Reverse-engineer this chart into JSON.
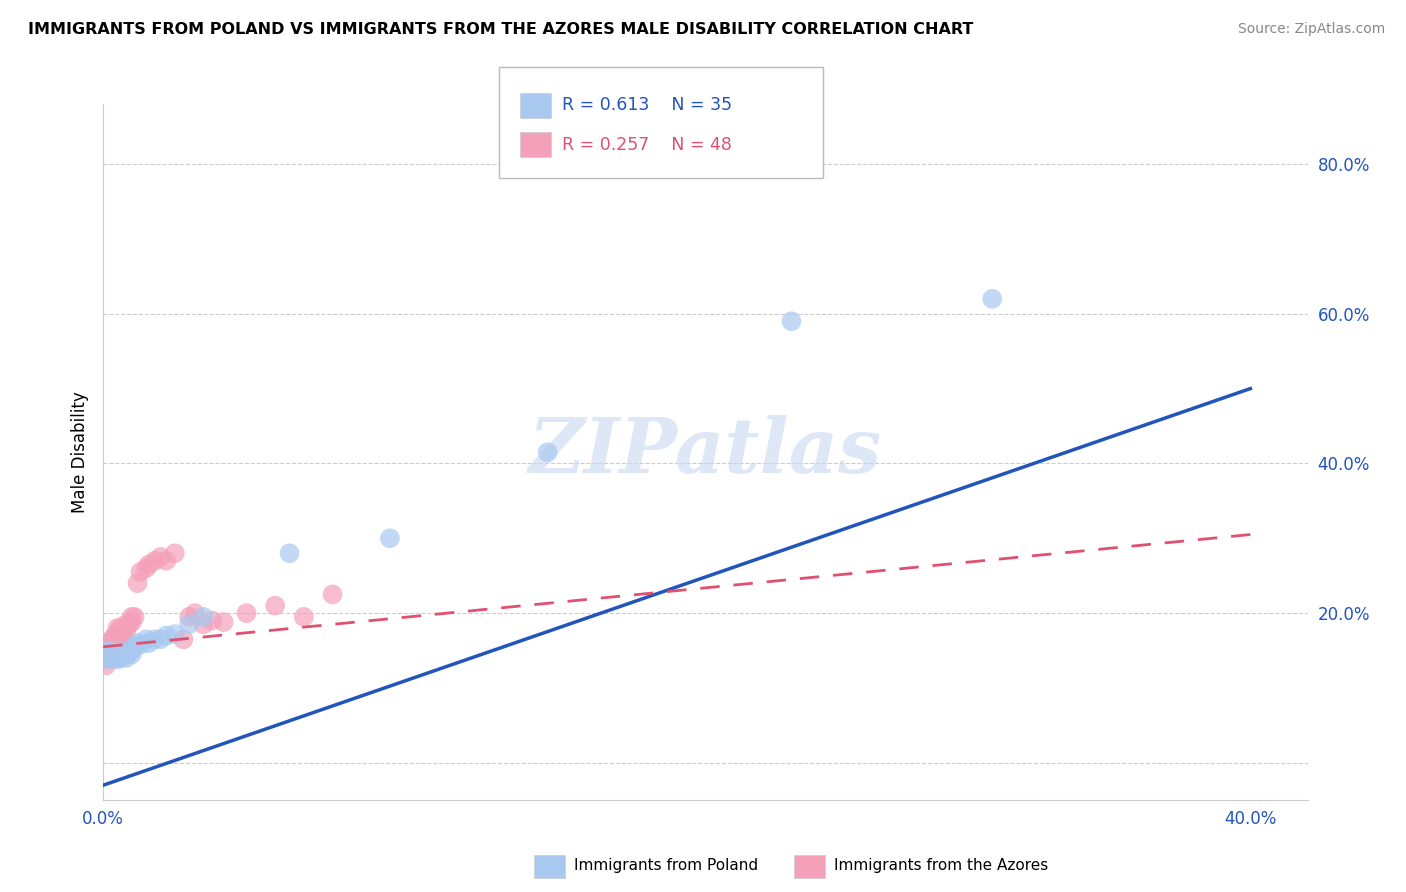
{
  "title": "IMMIGRANTS FROM POLAND VS IMMIGRANTS FROM THE AZORES MALE DISABILITY CORRELATION CHART",
  "source": "Source: ZipAtlas.com",
  "ylabel": "Male Disability",
  "xlim": [
    0.0,
    0.42
  ],
  "ylim": [
    -0.05,
    0.88
  ],
  "xticks": [
    0.0,
    0.05,
    0.1,
    0.15,
    0.2,
    0.25,
    0.3,
    0.35,
    0.4
  ],
  "yticks": [
    0.0,
    0.2,
    0.4,
    0.6,
    0.8
  ],
  "poland_color": "#a8c8f0",
  "azores_color": "#f4a0b8",
  "poland_line_color": "#2255bb",
  "azores_line_color": "#e05070",
  "legend_r_poland": "R = 0.613",
  "legend_n_poland": "N = 35",
  "legend_r_azores": "R = 0.257",
  "legend_n_azores": "N = 48",
  "watermark": "ZIPatlas",
  "poland_x": [
    0.001,
    0.001,
    0.002,
    0.002,
    0.003,
    0.003,
    0.004,
    0.004,
    0.005,
    0.005,
    0.006,
    0.006,
    0.007,
    0.007,
    0.008,
    0.008,
    0.009,
    0.01,
    0.01,
    0.011,
    0.012,
    0.013,
    0.015,
    0.016,
    0.018,
    0.02,
    0.022,
    0.025,
    0.03,
    0.035,
    0.065,
    0.1,
    0.155,
    0.24,
    0.31
  ],
  "poland_y": [
    0.14,
    0.145,
    0.138,
    0.15,
    0.142,
    0.148,
    0.14,
    0.145,
    0.138,
    0.145,
    0.14,
    0.148,
    0.142,
    0.148,
    0.14,
    0.145,
    0.148,
    0.15,
    0.145,
    0.155,
    0.16,
    0.158,
    0.165,
    0.16,
    0.165,
    0.165,
    0.17,
    0.172,
    0.185,
    0.195,
    0.28,
    0.3,
    0.415,
    0.59,
    0.62
  ],
  "azores_x": [
    0.001,
    0.001,
    0.001,
    0.001,
    0.002,
    0.002,
    0.002,
    0.002,
    0.003,
    0.003,
    0.003,
    0.003,
    0.004,
    0.004,
    0.004,
    0.005,
    0.005,
    0.005,
    0.005,
    0.006,
    0.006,
    0.006,
    0.007,
    0.007,
    0.008,
    0.008,
    0.009,
    0.01,
    0.01,
    0.011,
    0.012,
    0.013,
    0.015,
    0.016,
    0.018,
    0.02,
    0.022,
    0.025,
    0.028,
    0.03,
    0.032,
    0.035,
    0.038,
    0.042,
    0.05,
    0.06,
    0.07,
    0.08
  ],
  "azores_y": [
    0.13,
    0.145,
    0.15,
    0.155,
    0.14,
    0.145,
    0.15,
    0.16,
    0.14,
    0.148,
    0.155,
    0.165,
    0.155,
    0.16,
    0.17,
    0.16,
    0.165,
    0.17,
    0.18,
    0.165,
    0.17,
    0.18,
    0.17,
    0.175,
    0.175,
    0.185,
    0.185,
    0.195,
    0.188,
    0.195,
    0.24,
    0.255,
    0.26,
    0.265,
    0.27,
    0.275,
    0.27,
    0.28,
    0.165,
    0.195,
    0.2,
    0.185,
    0.19,
    0.188,
    0.2,
    0.21,
    0.195,
    0.225
  ],
  "poland_line_x0": 0.0,
  "poland_line_y0": -0.03,
  "poland_line_x1": 0.4,
  "poland_line_y1": 0.5,
  "azores_line_x0": 0.0,
  "azores_line_y0": 0.155,
  "azores_line_x1": 0.4,
  "azores_line_y1": 0.305
}
